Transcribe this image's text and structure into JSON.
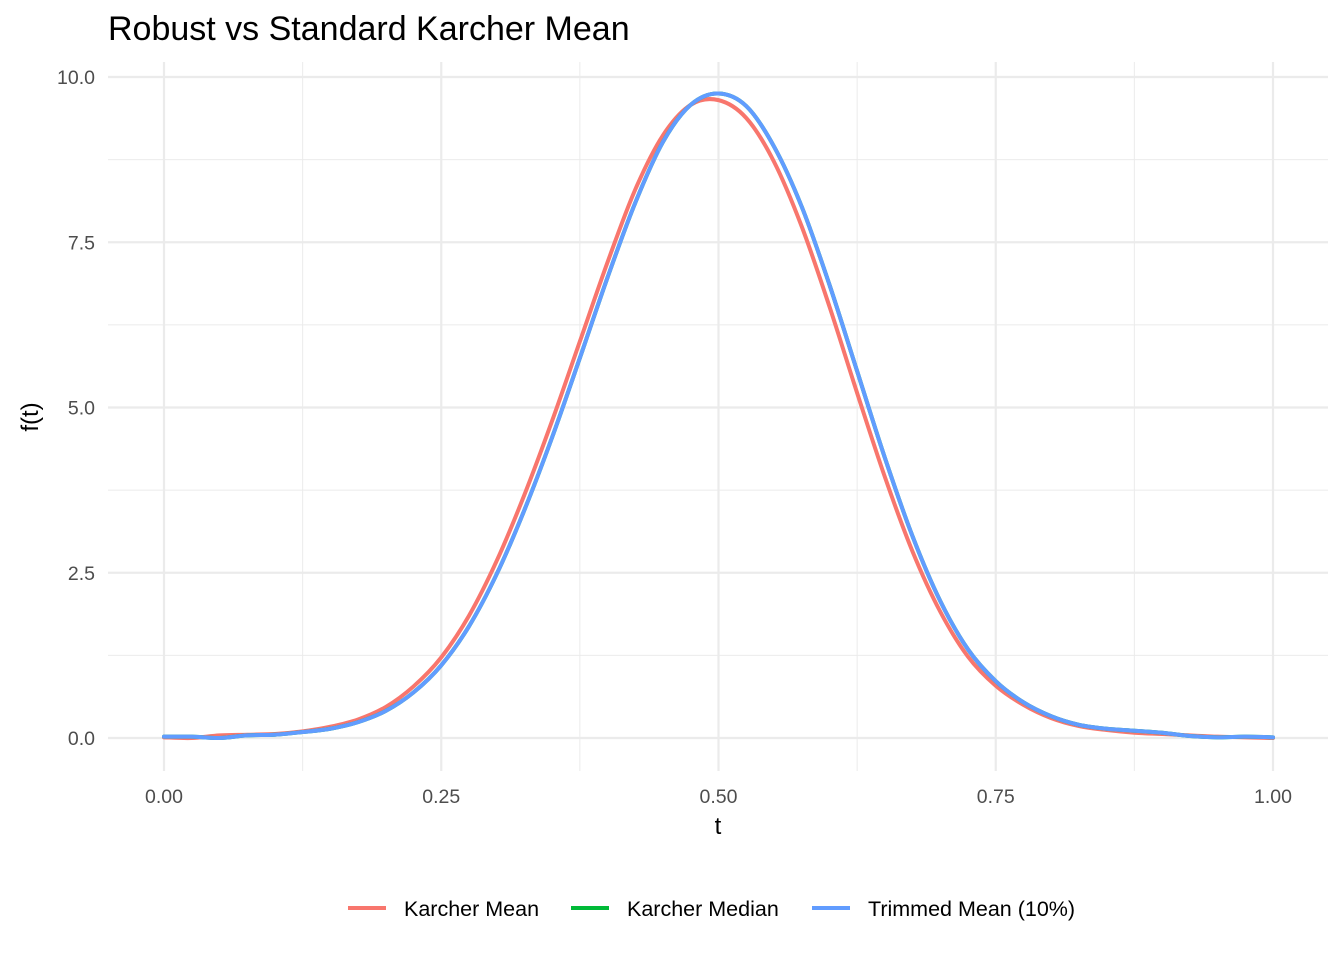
{
  "chart_data": {
    "type": "line",
    "title": "Robust vs Standard Karcher Mean",
    "xlabel": "t",
    "ylabel": "f(t)",
    "xlim": [
      0,
      1
    ],
    "ylim": [
      0,
      10
    ],
    "x_ticks": [
      0,
      0.25,
      0.5,
      0.75,
      1
    ],
    "x_tick_labels": [
      "0.00",
      "0.25",
      "0.50",
      "0.75",
      "1.00"
    ],
    "y_ticks": [
      0,
      2.5,
      5,
      7.5,
      10
    ],
    "y_tick_labels": [
      "0.0",
      "2.5",
      "5.0",
      "7.5",
      "10.0"
    ],
    "grid": true,
    "legend_position": "bottom",
    "x": [
      0,
      0.025,
      0.05,
      0.075,
      0.1,
      0.125,
      0.15,
      0.175,
      0.2,
      0.225,
      0.25,
      0.275,
      0.3,
      0.325,
      0.35,
      0.375,
      0.4,
      0.425,
      0.45,
      0.475,
      0.5,
      0.525,
      0.55,
      0.575,
      0.6,
      0.625,
      0.65,
      0.675,
      0.7,
      0.725,
      0.75,
      0.775,
      0.8,
      0.825,
      0.85,
      0.875,
      0.9,
      0.925,
      0.95,
      0.975,
      1
    ],
    "series": [
      {
        "name": "Karcher Mean",
        "color": "#F8766D",
        "values": [
          0.01,
          0.0,
          0.04,
          0.05,
          0.06,
          0.1,
          0.17,
          0.28,
          0.47,
          0.78,
          1.22,
          1.85,
          2.68,
          3.68,
          4.8,
          6.0,
          7.2,
          8.3,
          9.12,
          9.58,
          9.65,
          9.38,
          8.72,
          7.74,
          6.53,
          5.22,
          3.95,
          2.82,
          1.91,
          1.23,
          0.79,
          0.5,
          0.3,
          0.18,
          0.12,
          0.08,
          0.06,
          0.04,
          0.02,
          0.01,
          0.0
        ]
      },
      {
        "name": "Karcher Median",
        "color": "#00BA38",
        "values": [
          0.02,
          0.02,
          0.0,
          0.04,
          0.05,
          0.09,
          0.14,
          0.24,
          0.41,
          0.69,
          1.1,
          1.69,
          2.48,
          3.45,
          4.55,
          5.75,
          6.97,
          8.1,
          9.02,
          9.58,
          9.75,
          9.56,
          8.95,
          8.04,
          6.86,
          5.55,
          4.24,
          3.05,
          2.07,
          1.34,
          0.86,
          0.54,
          0.33,
          0.2,
          0.14,
          0.11,
          0.08,
          0.03,
          0.01,
          0.02,
          0.01
        ]
      },
      {
        "name": "Trimmed Mean (10%)",
        "color": "#619CFF",
        "values": [
          0.02,
          0.02,
          0.0,
          0.04,
          0.05,
          0.09,
          0.14,
          0.24,
          0.41,
          0.69,
          1.1,
          1.69,
          2.48,
          3.45,
          4.55,
          5.75,
          6.97,
          8.1,
          9.02,
          9.58,
          9.75,
          9.56,
          8.95,
          8.04,
          6.86,
          5.55,
          4.24,
          3.05,
          2.07,
          1.34,
          0.86,
          0.54,
          0.33,
          0.2,
          0.14,
          0.11,
          0.08,
          0.03,
          0.01,
          0.02,
          0.01
        ]
      }
    ]
  }
}
